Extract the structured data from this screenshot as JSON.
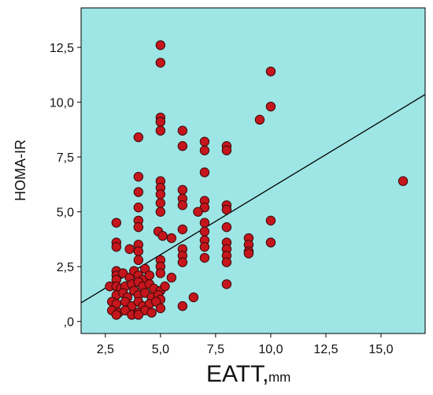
{
  "chart_data": {
    "type": "scatter",
    "xlabel": "EATT,",
    "xlabel_unit": "mm",
    "ylabel": "HOMA-IR",
    "xlim": [
      1.4,
      17.0
    ],
    "ylim": [
      -0.55,
      14.3
    ],
    "x_ticks": [
      {
        "value": 2.5,
        "label": "2,5"
      },
      {
        "value": 5.0,
        "label": "5,0"
      },
      {
        "value": 7.5,
        "label": "7,5"
      },
      {
        "value": 10.0,
        "label": "10,0"
      },
      {
        "value": 12.5,
        "label": "12,5"
      },
      {
        "value": 15.0,
        "label": "15,0"
      }
    ],
    "y_ticks": [
      {
        "value": 0.0,
        "label": ",0"
      },
      {
        "value": 2.5,
        "label": "2,5"
      },
      {
        "value": 5.0,
        "label": "5,0"
      },
      {
        "value": 7.5,
        "label": "7,5"
      },
      {
        "value": 10.0,
        "label": "10,0"
      },
      {
        "value": 12.5,
        "label": "12,5"
      }
    ],
    "fit_line": {
      "x": [
        1.4,
        17.0
      ],
      "y": [
        0.85,
        10.35
      ]
    },
    "colors": {
      "plot_background": "#9ee5e5",
      "marker_fill": "#c4161c",
      "marker_edge": "#3a0a0a",
      "fit_line": "#000000"
    },
    "points": [
      [
        5.0,
        12.6
      ],
      [
        5.0,
        11.8
      ],
      [
        10.0,
        11.4
      ],
      [
        10.0,
        9.8
      ],
      [
        9.5,
        9.2
      ],
      [
        5.0,
        9.3
      ],
      [
        5.0,
        9.1
      ],
      [
        5.0,
        8.7
      ],
      [
        6.0,
        8.7
      ],
      [
        6.0,
        8.0
      ],
      [
        7.0,
        8.2
      ],
      [
        7.0,
        7.8
      ],
      [
        8.0,
        8.0
      ],
      [
        8.0,
        7.8
      ],
      [
        4.0,
        8.4
      ],
      [
        16.0,
        6.4
      ],
      [
        7.0,
        6.8
      ],
      [
        4.0,
        6.6
      ],
      [
        5.0,
        6.4
      ],
      [
        5.0,
        6.1
      ],
      [
        5.0,
        5.8
      ],
      [
        6.0,
        6.0
      ],
      [
        6.0,
        5.6
      ],
      [
        4.0,
        5.9
      ],
      [
        4.0,
        5.2
      ],
      [
        5.0,
        5.4
      ],
      [
        6.0,
        5.3
      ],
      [
        7.0,
        5.5
      ],
      [
        7.0,
        5.2
      ],
      [
        8.0,
        5.3
      ],
      [
        8.0,
        5.1
      ],
      [
        5.0,
        5.0
      ],
      [
        4.0,
        4.6
      ],
      [
        6.7,
        5.0
      ],
      [
        10.0,
        4.6
      ],
      [
        3.0,
        4.5
      ],
      [
        4.0,
        4.3
      ],
      [
        6.0,
        4.2
      ],
      [
        7.0,
        4.5
      ],
      [
        7.0,
        4.1
      ],
      [
        8.0,
        4.3
      ],
      [
        4.9,
        4.1
      ],
      [
        5.1,
        3.9
      ],
      [
        5.5,
        3.8
      ],
      [
        7.0,
        3.7
      ],
      [
        7.0,
        3.4
      ],
      [
        8.0,
        3.6
      ],
      [
        8.0,
        3.3
      ],
      [
        9.0,
        3.8
      ],
      [
        9.0,
        3.5
      ],
      [
        9.0,
        3.2
      ],
      [
        9.0,
        3.1
      ],
      [
        10.0,
        3.6
      ],
      [
        3.0,
        3.6
      ],
      [
        3.0,
        3.4
      ],
      [
        3.6,
        3.3
      ],
      [
        4.0,
        3.5
      ],
      [
        4.0,
        3.2
      ],
      [
        6.0,
        3.3
      ],
      [
        6.0,
        3.0
      ],
      [
        6.0,
        2.7
      ],
      [
        7.0,
        2.9
      ],
      [
        8.0,
        3.0
      ],
      [
        8.0,
        2.7
      ],
      [
        5.0,
        2.8
      ],
      [
        5.0,
        2.5
      ],
      [
        5.0,
        2.2
      ],
      [
        4.0,
        2.8
      ],
      [
        3.0,
        2.3
      ],
      [
        3.0,
        2.1
      ],
      [
        3.0,
        1.9
      ],
      [
        3.3,
        2.2
      ],
      [
        3.6,
        2.0
      ],
      [
        3.8,
        2.3
      ],
      [
        4.0,
        2.1
      ],
      [
        4.2,
        1.9
      ],
      [
        4.3,
        2.4
      ],
      [
        4.5,
        2.1
      ],
      [
        5.5,
        2.0
      ],
      [
        8.0,
        1.7
      ],
      [
        2.7,
        1.6
      ],
      [
        3.0,
        1.6
      ],
      [
        3.2,
        1.5
      ],
      [
        3.4,
        1.6
      ],
      [
        3.7,
        1.7
      ],
      [
        4.0,
        1.8
      ],
      [
        4.2,
        1.6
      ],
      [
        4.5,
        1.7
      ],
      [
        4.7,
        1.5
      ],
      [
        5.0,
        1.4
      ],
      [
        5.2,
        1.6
      ],
      [
        3.0,
        1.2
      ],
      [
        3.3,
        1.3
      ],
      [
        3.5,
        1.1
      ],
      [
        3.8,
        1.4
      ],
      [
        4.0,
        1.2
      ],
      [
        4.3,
        1.3
      ],
      [
        4.6,
        1.1
      ],
      [
        4.9,
        1.2
      ],
      [
        5.0,
        1.0
      ],
      [
        6.5,
        1.1
      ],
      [
        2.8,
        0.9
      ],
      [
        3.0,
        0.8
      ],
      [
        3.4,
        0.9
      ],
      [
        3.7,
        0.7
      ],
      [
        4.0,
        0.9
      ],
      [
        4.2,
        0.7
      ],
      [
        4.5,
        0.8
      ],
      [
        4.8,
        0.9
      ],
      [
        5.0,
        0.6
      ],
      [
        6.0,
        0.7
      ],
      [
        2.8,
        0.5
      ],
      [
        3.1,
        0.4
      ],
      [
        3.4,
        0.5
      ],
      [
        3.7,
        0.3
      ],
      [
        4.0,
        0.4
      ],
      [
        4.3,
        0.5
      ],
      [
        4.6,
        0.4
      ],
      [
        3.0,
        0.3
      ],
      [
        4.0,
        0.3
      ]
    ]
  }
}
